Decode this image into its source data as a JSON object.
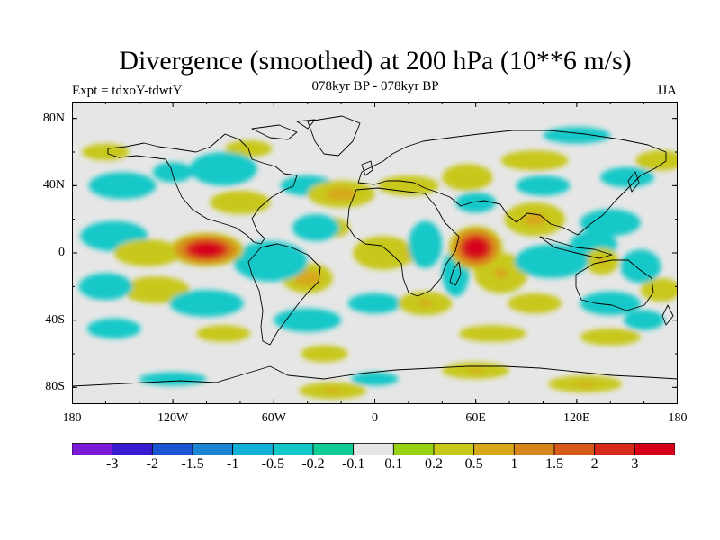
{
  "header": {
    "title": "Divergence (smoothed) at 200 hPa (10**6 m/s)",
    "subtitle": "078kyr BP - 078kyr BP",
    "experiment": "Expt = tdxoY-tdwtY",
    "season": "JJA"
  },
  "map": {
    "projection": "cylindrical-equidistant",
    "lon_range": [
      -180,
      180
    ],
    "lat_range": [
      -90,
      90
    ],
    "background_color": "#e6e6e6",
    "y_ticks": [
      {
        "lat": 80,
        "label": "80N"
      },
      {
        "lat": 40,
        "label": "40N"
      },
      {
        "lat": 0,
        "label": "0"
      },
      {
        "lat": -40,
        "label": "40S"
      },
      {
        "lat": -80,
        "label": "80S"
      }
    ],
    "x_ticks": [
      {
        "lon": -180,
        "label": "180"
      },
      {
        "lon": -120,
        "label": "120W"
      },
      {
        "lon": -60,
        "label": "60W"
      },
      {
        "lon": 0,
        "label": "0"
      },
      {
        "lon": 60,
        "label": "60E"
      },
      {
        "lon": 120,
        "label": "120E"
      },
      {
        "lon": 180,
        "label": "180"
      }
    ],
    "fields": [
      {
        "lon": -100,
        "lat": 2,
        "value": 3.5,
        "rx": 22,
        "ry": 10
      },
      {
        "lon": 60,
        "lat": 3,
        "value": 3.5,
        "rx": 16,
        "ry": 13
      },
      {
        "lon": -155,
        "lat": 10,
        "value": -0.3,
        "rx": 20,
        "ry": 9
      },
      {
        "lon": -135,
        "lat": 0,
        "value": 0.3,
        "rx": 20,
        "ry": 8
      },
      {
        "lon": -62,
        "lat": -5,
        "value": -1.2,
        "rx": 22,
        "ry": 12
      },
      {
        "lon": -35,
        "lat": 15,
        "value": -0.7,
        "rx": 14,
        "ry": 8
      },
      {
        "lon": -20,
        "lat": 35,
        "value": 0.7,
        "rx": 20,
        "ry": 8
      },
      {
        "lon": -40,
        "lat": -15,
        "value": 0.8,
        "rx": 15,
        "ry": 9
      },
      {
        "lon": -25,
        "lat": 15,
        "value": 0.5,
        "rx": 10,
        "ry": 6
      },
      {
        "lon": 5,
        "lat": 0,
        "value": 0.3,
        "rx": 18,
        "ry": 10
      },
      {
        "lon": 30,
        "lat": 5,
        "value": -0.6,
        "rx": 10,
        "ry": 14
      },
      {
        "lon": 48,
        "lat": -12,
        "value": -0.9,
        "rx": 8,
        "ry": 14
      },
      {
        "lon": 75,
        "lat": -12,
        "value": 0.5,
        "rx": 16,
        "ry": 12
      },
      {
        "lon": 95,
        "lat": 20,
        "value": 0.6,
        "rx": 18,
        "ry": 10
      },
      {
        "lon": 105,
        "lat": -5,
        "value": -1.1,
        "rx": 22,
        "ry": 10
      },
      {
        "lon": 130,
        "lat": 5,
        "value": -0.5,
        "rx": 14,
        "ry": 8
      },
      {
        "lon": 140,
        "lat": 18,
        "value": -0.4,
        "rx": 18,
        "ry": 8
      },
      {
        "lon": 135,
        "lat": -5,
        "value": 0.5,
        "rx": 10,
        "ry": 8
      },
      {
        "lon": 158,
        "lat": -8,
        "value": -0.5,
        "rx": 12,
        "ry": 10
      },
      {
        "lon": -150,
        "lat": 40,
        "value": -0.4,
        "rx": 20,
        "ry": 8
      },
      {
        "lon": -120,
        "lat": 48,
        "value": -0.3,
        "rx": 12,
        "ry": 6
      },
      {
        "lon": -90,
        "lat": 50,
        "value": -0.7,
        "rx": 20,
        "ry": 10
      },
      {
        "lon": -80,
        "lat": 30,
        "value": 0.4,
        "rx": 18,
        "ry": 7
      },
      {
        "lon": -75,
        "lat": 62,
        "value": 0.3,
        "rx": 14,
        "ry": 5
      },
      {
        "lon": -40,
        "lat": 40,
        "value": -0.5,
        "rx": 16,
        "ry": 6
      },
      {
        "lon": 20,
        "lat": 40,
        "value": 0.4,
        "rx": 18,
        "ry": 6
      },
      {
        "lon": 55,
        "lat": 45,
        "value": 0.4,
        "rx": 15,
        "ry": 8
      },
      {
        "lon": 60,
        "lat": 30,
        "value": -0.3,
        "rx": 12,
        "ry": 6
      },
      {
        "lon": 95,
        "lat": 55,
        "value": 0.3,
        "rx": 20,
        "ry": 6
      },
      {
        "lon": 100,
        "lat": 40,
        "value": -0.4,
        "rx": 16,
        "ry": 6
      },
      {
        "lon": 150,
        "lat": 45,
        "value": -0.3,
        "rx": 16,
        "ry": 6
      },
      {
        "lon": 170,
        "lat": 55,
        "value": 0.4,
        "rx": 15,
        "ry": 6
      },
      {
        "lon": -160,
        "lat": 60,
        "value": 0.3,
        "rx": 14,
        "ry": 5
      },
      {
        "lon": 120,
        "lat": 70,
        "value": -0.3,
        "rx": 20,
        "ry": 5
      },
      {
        "lon": -130,
        "lat": -22,
        "value": 0.4,
        "rx": 20,
        "ry": 8
      },
      {
        "lon": -160,
        "lat": -20,
        "value": -0.4,
        "rx": 16,
        "ry": 8
      },
      {
        "lon": -100,
        "lat": -30,
        "value": -0.4,
        "rx": 22,
        "ry": 8
      },
      {
        "lon": -40,
        "lat": -40,
        "value": -0.5,
        "rx": 20,
        "ry": 7
      },
      {
        "lon": 0,
        "lat": -30,
        "value": -0.3,
        "rx": 16,
        "ry": 6
      },
      {
        "lon": 30,
        "lat": -30,
        "value": 0.5,
        "rx": 16,
        "ry": 7
      },
      {
        "lon": 95,
        "lat": -30,
        "value": 0.3,
        "rx": 16,
        "ry": 6
      },
      {
        "lon": 140,
        "lat": -30,
        "value": -0.4,
        "rx": 18,
        "ry": 7
      },
      {
        "lon": 170,
        "lat": -22,
        "value": 0.4,
        "rx": 12,
        "ry": 7
      },
      {
        "lon": -155,
        "lat": -45,
        "value": -0.3,
        "rx": 16,
        "ry": 6
      },
      {
        "lon": -90,
        "lat": -48,
        "value": 0.3,
        "rx": 16,
        "ry": 5
      },
      {
        "lon": -30,
        "lat": -60,
        "value": 0.3,
        "rx": 14,
        "ry": 5
      },
      {
        "lon": 70,
        "lat": -48,
        "value": 0.3,
        "rx": 20,
        "ry": 5
      },
      {
        "lon": 140,
        "lat": -50,
        "value": 0.3,
        "rx": 18,
        "ry": 5
      },
      {
        "lon": 160,
        "lat": -40,
        "value": -0.3,
        "rx": 12,
        "ry": 6
      },
      {
        "lon": -25,
        "lat": -82,
        "value": 0.5,
        "rx": 20,
        "ry": 5
      },
      {
        "lon": 60,
        "lat": -70,
        "value": 0.5,
        "rx": 20,
        "ry": 5
      },
      {
        "lon": 125,
        "lat": -78,
        "value": 0.5,
        "rx": 22,
        "ry": 5
      },
      {
        "lon": -120,
        "lat": -75,
        "value": -0.3,
        "rx": 20,
        "ry": 4
      },
      {
        "lon": 0,
        "lat": -75,
        "value": -0.3,
        "rx": 14,
        "ry": 4
      },
      {
        "lon": 20,
        "lat": 0,
        "value": 0.5,
        "rx": 10,
        "ry": 6
      }
    ]
  },
  "colorbar": {
    "colors": [
      "#7c1bd6",
      "#3a1ad0",
      "#1b55d1",
      "#1a86d4",
      "#12b0d6",
      "#12c8c8",
      "#12cc96",
      "#e6e6e6",
      "#96d212",
      "#c8c81a",
      "#d6a81a",
      "#d6861a",
      "#d65a1a",
      "#d62a1a",
      "#d6001a"
    ],
    "labels": [
      "-3",
      "-2",
      "-1.5",
      "-1",
      "-0.5",
      "-0.2",
      "-0.1",
      "0.1",
      "0.2",
      "0.5",
      "1",
      "1.5",
      "2",
      "3"
    ],
    "thresholds": [
      -3,
      -2,
      -1.5,
      -1,
      -0.5,
      -0.2,
      -0.1,
      0.1,
      0.2,
      0.5,
      1,
      1.5,
      2,
      3
    ]
  }
}
